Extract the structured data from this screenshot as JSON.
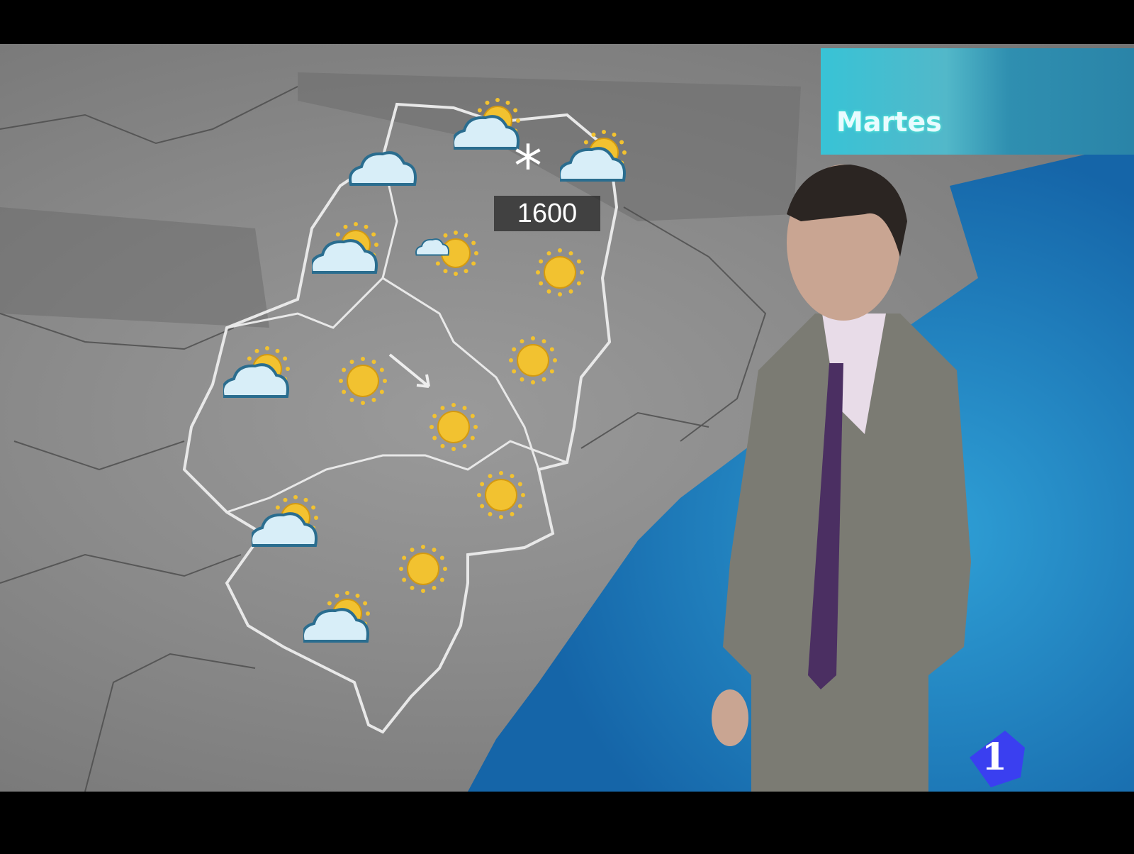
{
  "broadcast": {
    "day_label": "Martes",
    "snow_level_label": "1600",
    "channel_logo_text": "1"
  },
  "colors": {
    "sea": "#1f86c4",
    "land": "#8c8c8c",
    "region_border": "#e6e6e6",
    "day_panel": "#38c3d6",
    "logo": "#3a3ff0",
    "sun": "#f2c230",
    "cloud": "#d8eef8"
  },
  "forecast_icons": [
    "sun-behind-cloud",
    "cloud",
    "snow",
    "sun-behind-cloud",
    "sun-behind-cloud",
    "sun-behind-small-cloud",
    "sun",
    "sun-behind-cloud",
    "sun",
    "wind-arrow",
    "sun",
    "sun",
    "sun",
    "sun-behind-cloud",
    "sun",
    "sun-behind-cloud"
  ]
}
